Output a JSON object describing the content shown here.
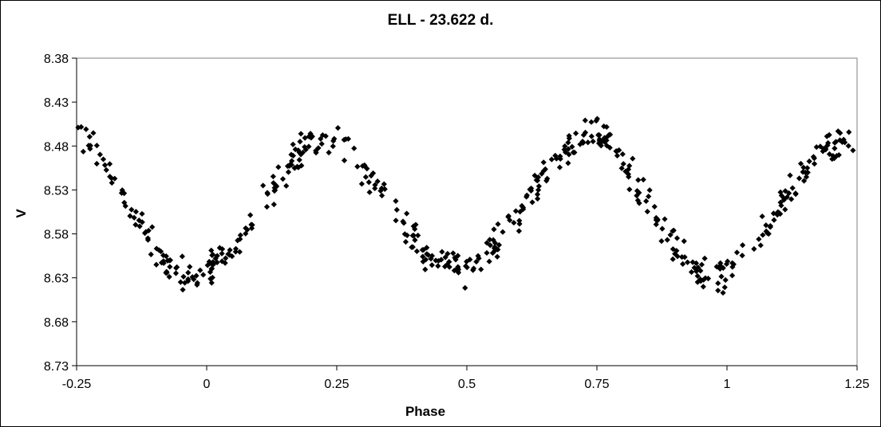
{
  "chart_data": {
    "type": "scatter",
    "title": "ELL - 23.622 d.",
    "xlabel": "Phase",
    "ylabel": "V",
    "xlim": [
      -0.25,
      1.25
    ],
    "ylim": [
      8.38,
      8.73
    ],
    "y_inverted": true,
    "x_ticks": [
      "-0.25",
      "0",
      "0.25",
      "0.5",
      "0.75",
      "1",
      "1.25"
    ],
    "y_ticks": [
      "8.38",
      "8.43",
      "8.48",
      "8.53",
      "8.58",
      "8.63",
      "8.68",
      "8.73"
    ],
    "grid": false,
    "legend": "none",
    "marker": "diamond",
    "marker_color": "#000000",
    "series": [
      {
        "x": [
          0.0,
          0.02,
          0.04,
          0.06,
          0.08,
          0.1,
          0.12,
          0.14,
          0.16,
          0.18,
          0.2,
          0.22,
          0.24,
          0.25,
          0.26,
          0.28,
          0.3,
          0.32,
          0.34,
          0.36,
          0.38,
          0.4,
          0.42,
          0.44,
          0.46,
          0.48,
          0.5,
          0.52,
          0.54,
          0.56,
          0.58,
          0.6,
          0.62,
          0.64,
          0.66,
          0.68,
          0.7,
          0.72,
          0.74,
          0.75,
          0.76,
          0.78,
          0.8,
          0.82,
          0.84,
          0.86,
          0.88,
          0.9,
          0.92,
          0.94,
          0.96,
          0.98,
          1.0
        ],
        "y": [
          8.625,
          8.61,
          8.6,
          8.585,
          8.57,
          8.555,
          8.535,
          8.515,
          8.5,
          8.485,
          8.478,
          8.474,
          8.472,
          8.472,
          8.476,
          8.49,
          8.505,
          8.52,
          8.535,
          8.553,
          8.57,
          8.588,
          8.602,
          8.612,
          8.617,
          8.619,
          8.62,
          8.616,
          8.606,
          8.592,
          8.575,
          8.556,
          8.537,
          8.519,
          8.502,
          8.488,
          8.478,
          8.47,
          8.467,
          8.467,
          8.47,
          8.482,
          8.498,
          8.516,
          8.538,
          8.558,
          8.578,
          8.597,
          8.612,
          8.622,
          8.627,
          8.628,
          8.625
        ]
      }
    ]
  }
}
